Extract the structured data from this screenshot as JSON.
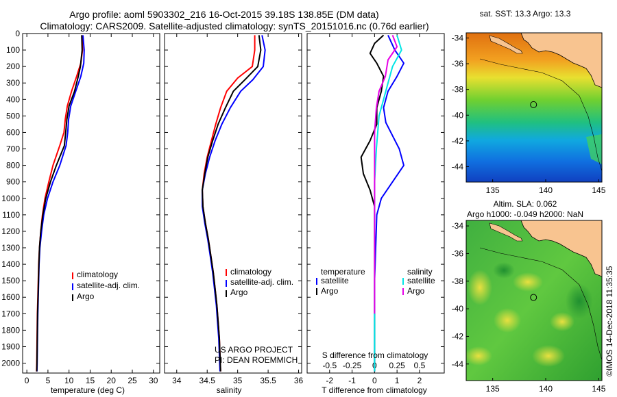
{
  "header": {
    "title_line1": "Argo profile: aoml 5903302_216 16-Oct-2015 39.18S 138.85E (DM data)",
    "title_line2": "Climatology: CARS2009. Satellite-adjusted climatology: synTS_20151016.nc (0.76d earlier)"
  },
  "colors": {
    "climatology": "#ff0000",
    "satellite": "#0000ff",
    "argo": "#000000",
    "t_satellite": "#0000ff",
    "s_satellite": "#00e5e5",
    "s_argo": "#e600e6",
    "land": "#f8c490"
  },
  "chart_data": [
    {
      "type": "line",
      "title": "",
      "xlabel": "temperature (deg C)",
      "ylabel": "depth",
      "xlim": [
        -1,
        31.5
      ],
      "ylim": [
        2060,
        0
      ],
      "xticks": [
        "0",
        "5",
        "10",
        "15",
        "20",
        "25",
        "30"
      ],
      "xtick_values": [
        0,
        5,
        10,
        15,
        20,
        25,
        30
      ],
      "yticks": [
        "0",
        "100",
        "200",
        "300",
        "400",
        "500",
        "600",
        "700",
        "800",
        "900",
        "1000",
        "1100",
        "1200",
        "1300",
        "1400",
        "1500",
        "1600",
        "1700",
        "1800",
        "1900",
        "2000"
      ],
      "ytick_values": [
        0,
        100,
        200,
        300,
        400,
        500,
        600,
        700,
        800,
        900,
        1000,
        1100,
        1200,
        1300,
        1400,
        1500,
        1600,
        1700,
        1800,
        1900,
        2000
      ],
      "legend": [
        "climatology",
        "satellite-adj. clim.",
        "Argo"
      ],
      "series": [
        {
          "name": "climatology",
          "color": "#ff0000",
          "points": [
            [
              13.1,
              10
            ],
            [
              13.2,
              100
            ],
            [
              12.8,
              180
            ],
            [
              11.8,
              260
            ],
            [
              10.6,
              350
            ],
            [
              9.6,
              440
            ],
            [
              9.1,
              520
            ],
            [
              8.8,
              600
            ],
            [
              7.8,
              680
            ],
            [
              6.2,
              800
            ],
            [
              5.2,
              900
            ],
            [
              4.3,
              1000
            ],
            [
              3.7,
              1100
            ],
            [
              3.3,
              1200
            ],
            [
              3.0,
              1300
            ],
            [
              2.8,
              1400
            ],
            [
              2.7,
              1500
            ],
            [
              2.6,
              1600
            ],
            [
              2.5,
              1700
            ],
            [
              2.45,
              1800
            ],
            [
              2.4,
              1900
            ],
            [
              2.35,
              2000
            ],
            [
              2.3,
              2050
            ]
          ]
        },
        {
          "name": "satellite-adj. clim.",
          "color": "#0000ff",
          "points": [
            [
              13.3,
              10
            ],
            [
              13.6,
              100
            ],
            [
              13.5,
              180
            ],
            [
              12.8,
              260
            ],
            [
              11.6,
              350
            ],
            [
              10.4,
              440
            ],
            [
              9.9,
              520
            ],
            [
              9.7,
              600
            ],
            [
              9.3,
              680
            ],
            [
              7.8,
              800
            ],
            [
              6.2,
              900
            ],
            [
              4.9,
              1000
            ],
            [
              4.0,
              1100
            ],
            [
              3.5,
              1200
            ],
            [
              3.1,
              1300
            ],
            [
              2.9,
              1400
            ],
            [
              2.8,
              1500
            ],
            [
              2.7,
              1600
            ],
            [
              2.6,
              1700
            ],
            [
              2.55,
              1800
            ],
            [
              2.5,
              1900
            ],
            [
              2.45,
              2000
            ],
            [
              2.4,
              2050
            ]
          ]
        },
        {
          "name": "Argo",
          "color": "#000000",
          "points": [
            [
              13.0,
              10
            ],
            [
              13.1,
              100
            ],
            [
              12.7,
              200
            ],
            [
              12.2,
              260
            ],
            [
              11.3,
              350
            ],
            [
              10.0,
              440
            ],
            [
              9.5,
              520
            ],
            [
              9.2,
              600
            ],
            [
              8.9,
              680
            ],
            [
              7.0,
              800
            ],
            [
              5.6,
              900
            ],
            [
              4.5,
              1000
            ],
            [
              3.8,
              1100
            ],
            [
              3.3,
              1200
            ],
            [
              3.0,
              1300
            ],
            [
              2.85,
              1400
            ],
            [
              2.75,
              1500
            ],
            [
              2.65,
              1600
            ],
            [
              2.55,
              1700
            ],
            [
              2.5,
              1800
            ],
            [
              2.45,
              1900
            ],
            [
              2.4,
              2000
            ],
            [
              2.35,
              2050
            ]
          ]
        }
      ]
    },
    {
      "type": "line",
      "title": "",
      "xlabel": "salinity",
      "ylabel": "",
      "xlim": [
        33.8,
        36.05
      ],
      "ylim": [
        2060,
        0
      ],
      "xticks": [
        "34",
        "34.5",
        "35",
        "35.5",
        "36"
      ],
      "xtick_values": [
        34,
        34.5,
        35,
        35.5,
        36
      ],
      "legend": [
        "climatology",
        "satellite-adj. clim.",
        "Argo"
      ],
      "annotations": [
        "US ARGO PROJECT",
        "PI: DEAN ROEMMICH"
      ],
      "series": [
        {
          "name": "climatology",
          "color": "#ff0000",
          "points": [
            [
              35.28,
              10
            ],
            [
              35.28,
              100
            ],
            [
              35.24,
              200
            ],
            [
              35.0,
              270
            ],
            [
              34.82,
              350
            ],
            [
              34.72,
              450
            ],
            [
              34.64,
              550
            ],
            [
              34.57,
              650
            ],
            [
              34.5,
              750
            ],
            [
              34.45,
              850
            ],
            [
              34.42,
              950
            ],
            [
              34.43,
              1050
            ],
            [
              34.47,
              1150
            ],
            [
              34.52,
              1250
            ],
            [
              34.56,
              1350
            ],
            [
              34.6,
              1450
            ],
            [
              34.63,
              1550
            ],
            [
              34.66,
              1650
            ],
            [
              34.68,
              1750
            ],
            [
              34.7,
              1850
            ],
            [
              34.71,
              1950
            ],
            [
              34.72,
              2050
            ]
          ]
        },
        {
          "name": "satellite-adj. clim.",
          "color": "#0000ff",
          "points": [
            [
              35.4,
              10
            ],
            [
              35.45,
              100
            ],
            [
              35.42,
              200
            ],
            [
              35.25,
              280
            ],
            [
              35.05,
              350
            ],
            [
              34.88,
              450
            ],
            [
              34.74,
              550
            ],
            [
              34.63,
              650
            ],
            [
              34.54,
              750
            ],
            [
              34.47,
              850
            ],
            [
              34.42,
              950
            ],
            [
              34.42,
              1050
            ],
            [
              34.46,
              1150
            ],
            [
              34.51,
              1250
            ],
            [
              34.55,
              1350
            ],
            [
              34.59,
              1450
            ],
            [
              34.62,
              1550
            ],
            [
              34.65,
              1650
            ],
            [
              34.67,
              1750
            ],
            [
              34.69,
              1850
            ],
            [
              34.7,
              1950
            ],
            [
              34.71,
              2050
            ]
          ]
        },
        {
          "name": "Argo",
          "color": "#000000",
          "points": [
            [
              35.35,
              10
            ],
            [
              35.38,
              100
            ],
            [
              35.33,
              200
            ],
            [
              35.12,
              280
            ],
            [
              34.93,
              350
            ],
            [
              34.8,
              450
            ],
            [
              34.68,
              550
            ],
            [
              34.59,
              650
            ],
            [
              34.51,
              750
            ],
            [
              34.46,
              850
            ],
            [
              34.42,
              950
            ],
            [
              34.43,
              1050
            ],
            [
              34.47,
              1150
            ],
            [
              34.52,
              1250
            ],
            [
              34.56,
              1350
            ],
            [
              34.6,
              1450
            ],
            [
              34.63,
              1550
            ],
            [
              34.66,
              1650
            ],
            [
              34.68,
              1750
            ],
            [
              34.7,
              1850
            ],
            [
              34.71,
              1950
            ],
            [
              34.72,
              2050
            ]
          ]
        }
      ]
    },
    {
      "type": "line",
      "title": "",
      "xlabel": "T difference from climatology",
      "xlabel2": "S difference from climatology",
      "xlim": [
        -3,
        3.1
      ],
      "ylim": [
        2060,
        0
      ],
      "xticks": [
        "-2",
        "-1",
        "0",
        "1",
        "2"
      ],
      "xtick_values": [
        -2,
        -1,
        0,
        1,
        2
      ],
      "s_xticks": [
        "-0.5",
        "-0.25",
        "0",
        "0.25",
        "0.5"
      ],
      "s_xtick_values": [
        -0.5,
        -0.25,
        0,
        0.25,
        0.5
      ],
      "legend_temperature_title": "temperature",
      "legend_salinity_title": "salinity",
      "legend": [
        "satellite",
        "Argo",
        "satellite",
        "Argo"
      ],
      "series": [
        {
          "name": "temperature satellite",
          "color": "#0000ff",
          "points": [
            [
              0.6,
              10
            ],
            [
              0.9,
              100
            ],
            [
              1.3,
              180
            ],
            [
              1.0,
              260
            ],
            [
              0.6,
              350
            ],
            [
              0.4,
              450
            ],
            [
              0.5,
              540
            ],
            [
              0.8,
              620
            ],
            [
              1.1,
              700
            ],
            [
              1.3,
              800
            ],
            [
              0.8,
              900
            ],
            [
              0.3,
              1000
            ],
            [
              0.1,
              1100
            ],
            [
              0.05,
              1300
            ],
            [
              0.0,
              1500
            ],
            [
              0.0,
              1800
            ],
            [
              0.0,
              2050
            ]
          ]
        },
        {
          "name": "temperature Argo",
          "color": "#000000",
          "points": [
            [
              0.4,
              10
            ],
            [
              0.0,
              60
            ],
            [
              -0.2,
              120
            ],
            [
              0.1,
              180
            ],
            [
              0.4,
              260
            ],
            [
              0.3,
              350
            ],
            [
              0.1,
              450
            ],
            [
              0.1,
              550
            ],
            [
              -0.2,
              650
            ],
            [
              -0.6,
              750
            ],
            [
              -0.5,
              850
            ],
            [
              -0.2,
              950
            ],
            [
              0.0,
              1050
            ],
            [
              0.0,
              1300
            ],
            [
              0.0,
              1600
            ],
            [
              0.0,
              1900
            ],
            [
              0.0,
              2050
            ]
          ]
        },
        {
          "name": "salinity satellite",
          "color": "#00e5e5",
          "points": [
            [
              0.25,
              10
            ],
            [
              0.3,
              100
            ],
            [
              0.2,
              200
            ],
            [
              0.15,
              300
            ],
            [
              0.1,
              400
            ],
            [
              0.05,
              500
            ],
            [
              0.02,
              700
            ],
            [
              0.0,
              900
            ],
            [
              0.0,
              1200
            ],
            [
              0.0,
              1500
            ],
            [
              0.0,
              1800
            ],
            [
              0.0,
              2050
            ]
          ]
        },
        {
          "name": "salinity Argo",
          "color": "#e600e6",
          "points": [
            [
              0.2,
              10
            ],
            [
              0.25,
              80
            ],
            [
              0.15,
              160
            ],
            [
              0.12,
              260
            ],
            [
              0.05,
              350
            ],
            [
              0.02,
              450
            ],
            [
              0.0,
              600
            ],
            [
              0.0,
              900
            ],
            [
              0.0,
              1200
            ],
            [
              0.0,
              1500
            ],
            [
              0.0,
              1700
            ]
          ]
        }
      ]
    },
    {
      "type": "heatmap",
      "title": "sat. SST: 13.3 Argo: 13.3",
      "xticks": [
        "135",
        "140",
        "145"
      ],
      "xtick_values": [
        135,
        140,
        145
      ],
      "yticks": [
        "-34",
        "-36",
        "-38",
        "-40",
        "-42",
        "-44"
      ],
      "ytick_values": [
        -34,
        -36,
        -38,
        -40,
        -42,
        -44
      ],
      "xlim": [
        132.5,
        145.3
      ],
      "ylim": [
        -45.2,
        -33.6
      ],
      "marker": {
        "lon": 138.85,
        "lat": -39.18
      }
    },
    {
      "type": "heatmap",
      "title": "Altim. SLA: 0.062",
      "subtitle": "Argo h1000: -0.049 h2000: NaN",
      "xticks": [
        "135",
        "140",
        "145"
      ],
      "xtick_values": [
        135,
        140,
        145
      ],
      "yticks": [
        "-34",
        "-36",
        "-38",
        "-40",
        "-42",
        "-44"
      ],
      "ytick_values": [
        -34,
        -36,
        -38,
        -40,
        -42,
        -44
      ],
      "xlim": [
        132.5,
        145.3
      ],
      "ylim": [
        -45.2,
        -33.6
      ],
      "marker": {
        "lon": 138.85,
        "lat": -39.18
      }
    }
  ],
  "footer": {
    "credit": "©IMOS 14-Dec-2018 11:35:35"
  }
}
